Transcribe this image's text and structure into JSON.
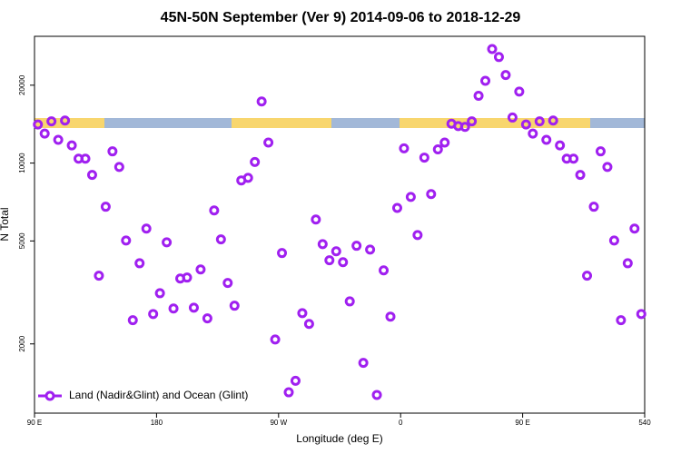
{
  "chart_data": {
    "type": "scatter",
    "title": "45N-50N September (Ver 9)   2014-09-06 to 2018-12-29",
    "x_label": "Longitude (deg E)",
    "y_label": "N Total",
    "log_y": true,
    "legend_position": "bottom-left",
    "xlim": [
      90,
      540
    ],
    "xticks": [
      {
        "value": 90,
        "label": "90 E"
      },
      180,
      {
        "value": 270,
        "label": "90 W"
      },
      {
        "value": 360,
        "label": "0"
      },
      {
        "value": 450,
        "label": "90 E"
      },
      540
    ],
    "ylim": [
      1080,
      30900
    ],
    "yticks": [
      2000,
      5000,
      10000,
      20000
    ],
    "series": [
      {
        "name": "Land (Nadir&Glint) and Ocean (Glint)",
        "color": "#a020f0",
        "x": [
          92.5,
          97.5,
          102.5,
          107.5,
          112.5,
          117.5,
          122.5,
          127.5,
          132.5,
          137.5,
          142.5,
          147.5,
          152.5,
          157.5,
          162.5,
          167.5,
          172.5,
          177.5,
          182.5,
          187.5,
          192.5,
          197.5,
          202.5,
          207.5,
          212.5,
          217.5,
          222.5,
          227.5,
          232.5,
          237.5,
          242.5,
          247.5,
          252.5,
          257.5,
          262.5,
          267.5,
          272.5,
          277.5,
          282.5,
          287.5,
          292.5,
          297.5,
          302.5,
          307.5,
          312.5,
          317.5,
          322.5,
          327.5,
          332.5,
          337.5,
          342.5,
          347.5,
          352.5,
          357.5,
          362.5,
          367.5,
          372.5,
          377.5,
          382.5,
          387.5,
          392.5,
          397.5,
          402.5,
          407.5,
          412.5,
          417.5,
          422.5,
          427.5,
          432.5,
          437.5,
          442.5,
          447.5,
          452.5,
          457.5,
          462.5,
          467.5,
          472.5,
          477.5,
          482.5,
          487.5,
          492.5,
          497.5,
          502.5,
          507.5,
          512.5,
          517.5,
          522.5,
          527.5,
          532.5,
          537.5
        ],
        "values": [
          14100,
          13000,
          14500,
          12300,
          14600,
          11700,
          10400,
          10400,
          9000,
          3670,
          6780,
          11100,
          9660,
          5020,
          2470,
          4100,
          5580,
          2610,
          3140,
          4940,
          2740,
          3580,
          3610,
          2760,
          3880,
          2510,
          6560,
          5070,
          3440,
          2810,
          8570,
          8770,
          10100,
          17300,
          12000,
          2080,
          4490,
          1300,
          1440,
          2630,
          2390,
          6050,
          4860,
          4210,
          4560,
          4140,
          2920,
          4790,
          1690,
          4630,
          1270,
          3850,
          2550,
          6710,
          11400,
          7400,
          5270,
          10500,
          7590,
          11300,
          12000,
          14200,
          13900,
          13800,
          14500,
          18200,
          20800,
          27600,
          25700,
          21900,
          15000,
          18900,
          14100,
          13000,
          14500,
          12300,
          14600,
          11700,
          10400,
          10400,
          9000,
          3670,
          6780,
          11100,
          9660,
          5020,
          2470,
          4100,
          5580,
          2610
        ]
      }
    ]
  }
}
